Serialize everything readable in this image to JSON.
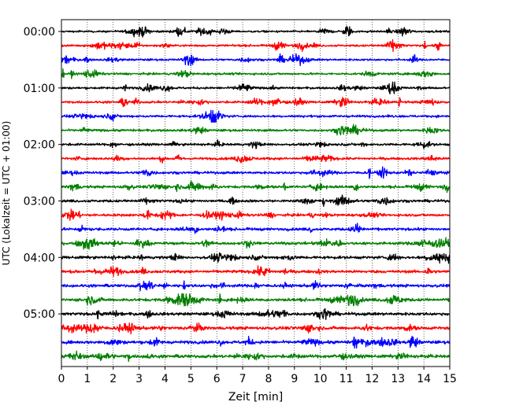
{
  "chart_data": {
    "type": "line",
    "chart_kind": "helicorder (seismogram drum plot)",
    "xlabel": "Zeit  [min]",
    "ylabel": "UTC (Lokalzeit = UTC + 01:00)",
    "xlim": [
      0,
      15
    ],
    "x_ticks": [
      "0",
      "1",
      "2",
      "3",
      "4",
      "5",
      "6",
      "7",
      "8",
      "9",
      "10",
      "11",
      "12",
      "13",
      "14",
      "15"
    ],
    "y_ticks": [
      "00:00",
      "01:00",
      "02:00",
      "03:00",
      "04:00",
      "05:00"
    ],
    "trace_interval_minutes": 15,
    "trace_count": 24,
    "trace_start_times": [
      "00:00",
      "00:15",
      "00:30",
      "00:45",
      "01:00",
      "01:15",
      "01:30",
      "01:45",
      "02:00",
      "02:15",
      "02:30",
      "02:45",
      "03:00",
      "03:15",
      "03:30",
      "03:45",
      "04:00",
      "04:15",
      "04:30",
      "04:45",
      "05:00",
      "05:15",
      "05:30",
      "05:45"
    ],
    "color_cycle": [
      "#000000",
      "#ff0000",
      "#0000ff",
      "#008000"
    ],
    "grid": "vertical dotted lines at each minute",
    "legend": "none"
  }
}
